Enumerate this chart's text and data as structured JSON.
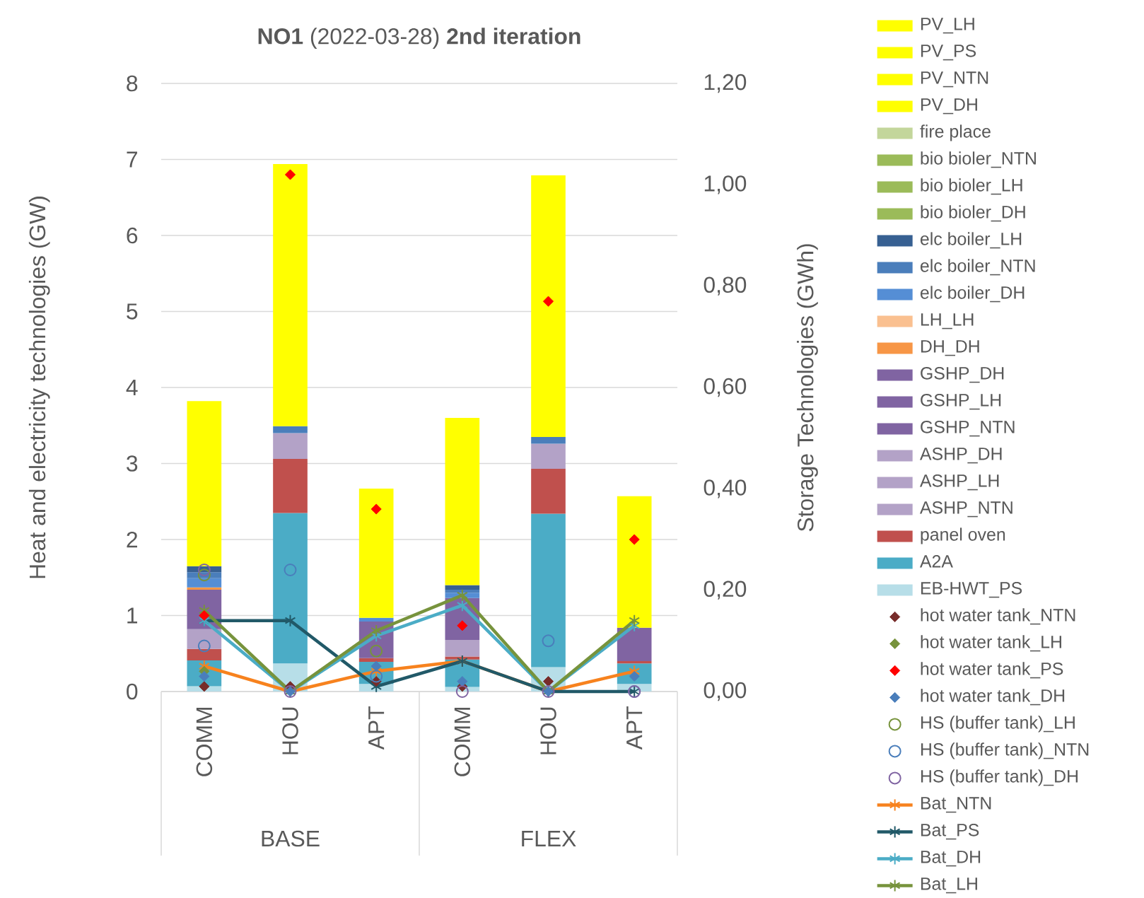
{
  "chart_data": {
    "type": "bar",
    "title": "**NO1** (2022-03-28) **2nd iteration**",
    "ylabel": "Heat and electricity technologies (GW)",
    "y2label": "Storage Technologies (GWh)",
    "categories": [
      "COMM",
      "HOU",
      "APT",
      "COMM",
      "HOU",
      "APT"
    ],
    "annotations": [
      "BASE",
      "FLEX"
    ],
    "stacked": true,
    "grid": "y",
    "legend": "right",
    "ylim": [
      0,
      8
    ],
    "yticks": [
      0,
      1,
      2,
      3,
      4,
      5,
      6,
      7,
      8
    ],
    "y2lim": [
      0,
      1.2
    ],
    "y2ticks": [
      {
        "value": 0,
        "label": "0,00"
      },
      {
        "value": 0.2,
        "label": "0,20"
      },
      {
        "value": 0.4,
        "label": "0,40"
      },
      {
        "value": 0.6,
        "label": "0,60"
      },
      {
        "value": 0.8,
        "label": "0,80"
      },
      {
        "value": 1.0,
        "label": "1,00"
      },
      {
        "value": 1.2,
        "label": "1,20"
      }
    ],
    "series": [
      {
        "name": "EB-HWT_PS",
        "color": "#b7dee8",
        "values": [
          0.07,
          0.37,
          0.1,
          0.06,
          0.32,
          0.1
        ]
      },
      {
        "name": "A2A",
        "color": "#4bacc6",
        "values": [
          0.34,
          1.98,
          0.29,
          0.36,
          2.02,
          0.27
        ]
      },
      {
        "name": "panel oven",
        "color": "#c0504d",
        "values": [
          0.15,
          0.71,
          0.05,
          0.04,
          0.59,
          0.03
        ]
      },
      {
        "name": "ASHP_NTN",
        "color": "#b3a2c7",
        "values": [
          0.26,
          0.34,
          null,
          0.22,
          0.33,
          null
        ]
      },
      {
        "name": "ASHP_LH",
        "color": "#b3a2c7",
        "values": [
          null,
          null,
          null,
          null,
          null,
          null
        ]
      },
      {
        "name": "ASHP_DH",
        "color": "#b3a2c7",
        "values": [
          null,
          null,
          null,
          null,
          null,
          null
        ]
      },
      {
        "name": "GSHP_NTN",
        "color": "#8064a2",
        "values": [
          0.52,
          null,
          0.48,
          0.55,
          null,
          0.44
        ]
      },
      {
        "name": "GSHP_LH",
        "color": "#8064a2",
        "values": [
          null,
          null,
          null,
          null,
          null,
          null
        ]
      },
      {
        "name": "GSHP_DH",
        "color": "#8064a2",
        "values": [
          null,
          null,
          null,
          null,
          null,
          null
        ]
      },
      {
        "name": "DH_DH",
        "color": "#f79646",
        "values": [
          0.03,
          null,
          null,
          null,
          null,
          null
        ]
      },
      {
        "name": "LH_LH",
        "color": "#fac090",
        "values": [
          null,
          null,
          null,
          null,
          null,
          null
        ]
      },
      {
        "name": "elc boiler_DH",
        "color": "#558ed5",
        "values": [
          0.12,
          null,
          0.05,
          0.07,
          null,
          null
        ]
      },
      {
        "name": "elc boiler_NTN",
        "color": "#4a7ebb",
        "values": [
          0.08,
          0.09,
          null,
          0.04,
          0.09,
          null
        ]
      },
      {
        "name": "elc boiler_LH",
        "color": "#376092",
        "values": [
          0.08,
          null,
          null,
          0.06,
          null,
          null
        ]
      },
      {
        "name": "bio bioler_DH",
        "color": "#9bbb59",
        "values": [
          null,
          null,
          null,
          null,
          null,
          null
        ]
      },
      {
        "name": "bio bioler_LH",
        "color": "#9bbb59",
        "values": [
          null,
          null,
          null,
          null,
          null,
          null
        ]
      },
      {
        "name": "bio bioler_NTN",
        "color": "#9bbb59",
        "values": [
          null,
          null,
          null,
          null,
          null,
          null
        ]
      },
      {
        "name": "fire place",
        "color": "#c3d69b",
        "values": [
          null,
          null,
          null,
          null,
          null,
          null
        ]
      },
      {
        "name": "PV_DH",
        "color": "#ffff00",
        "values": [
          2.17,
          3.45,
          1.7,
          2.2,
          3.44,
          1.73
        ]
      },
      {
        "name": "PV_NTN",
        "color": "#ffff00",
        "values": [
          null,
          null,
          null,
          null,
          null,
          null
        ]
      },
      {
        "name": "PV_PS",
        "color": "#ffff00",
        "values": [
          null,
          null,
          null,
          null,
          null,
          null
        ]
      },
      {
        "name": "PV_LH",
        "color": "#ffff00",
        "values": [
          null,
          null,
          null,
          null,
          null,
          null
        ]
      },
      {
        "name": "hot water tank_NTN",
        "type": "scatter",
        "axis": "y2",
        "marker": "diamond",
        "color": "#772c2a",
        "values": [
          0.01,
          0.01,
          0.02,
          0.01,
          0.02,
          null
        ]
      },
      {
        "name": "hot water tank_LH",
        "type": "scatter",
        "axis": "y2",
        "marker": "diamond",
        "color": "#77933c",
        "values": [
          0.04,
          null,
          null,
          null,
          null,
          null
        ]
      },
      {
        "name": "hot water tank_PS",
        "type": "scatter",
        "axis": "y2",
        "marker": "diamond",
        "color": "#ff0000",
        "values": [
          0.15,
          1.02,
          0.36,
          0.13,
          0.77,
          0.3
        ]
      },
      {
        "name": "hot water tank_DH",
        "type": "scatter",
        "axis": "y2",
        "marker": "diamond",
        "color": "#4a7ebb",
        "values": [
          0.03,
          0.0,
          0.05,
          0.02,
          0.0,
          0.03
        ]
      },
      {
        "name": "HS (buffer tank)_LH",
        "type": "scatter",
        "axis": "y2",
        "marker": "circle",
        "color": "#77933c",
        "values": [
          0.23,
          null,
          0.08,
          null,
          null,
          null
        ]
      },
      {
        "name": "HS (buffer tank)_NTN",
        "type": "scatter",
        "axis": "y2",
        "marker": "circle",
        "color": "#4a7ebb",
        "values": [
          0.09,
          0.24,
          0.03,
          null,
          0.1,
          0.0
        ]
      },
      {
        "name": "HS (buffer tank)_DH",
        "type": "scatter",
        "axis": "y2",
        "marker": "circle",
        "color": "#8064a2",
        "values": [
          0.24,
          0.0,
          null,
          0.0,
          0.0,
          0.0
        ]
      },
      {
        "name": "Bat_NTN",
        "type": "line",
        "axis": "y2",
        "marker": "cross",
        "color": "#f7821e",
        "values": [
          0.05,
          0.0,
          0.04,
          0.06,
          0.0,
          0.04
        ]
      },
      {
        "name": "Bat_PS",
        "type": "line",
        "axis": "y2",
        "marker": "cross",
        "color": "#215968",
        "values": [
          0.14,
          0.14,
          0.01,
          0.06,
          0.0,
          0.0
        ]
      },
      {
        "name": "Bat_DH",
        "type": "line",
        "axis": "y2",
        "marker": "cross",
        "color": "#4bacc6",
        "values": [
          0.14,
          0.0,
          0.11,
          0.17,
          0.0,
          0.13
        ]
      },
      {
        "name": "Bat_LH",
        "type": "line",
        "axis": "y2",
        "marker": "cross",
        "color": "#77933c",
        "values": [
          0.16,
          0.0,
          0.12,
          0.19,
          0.0,
          0.14
        ]
      }
    ]
  }
}
